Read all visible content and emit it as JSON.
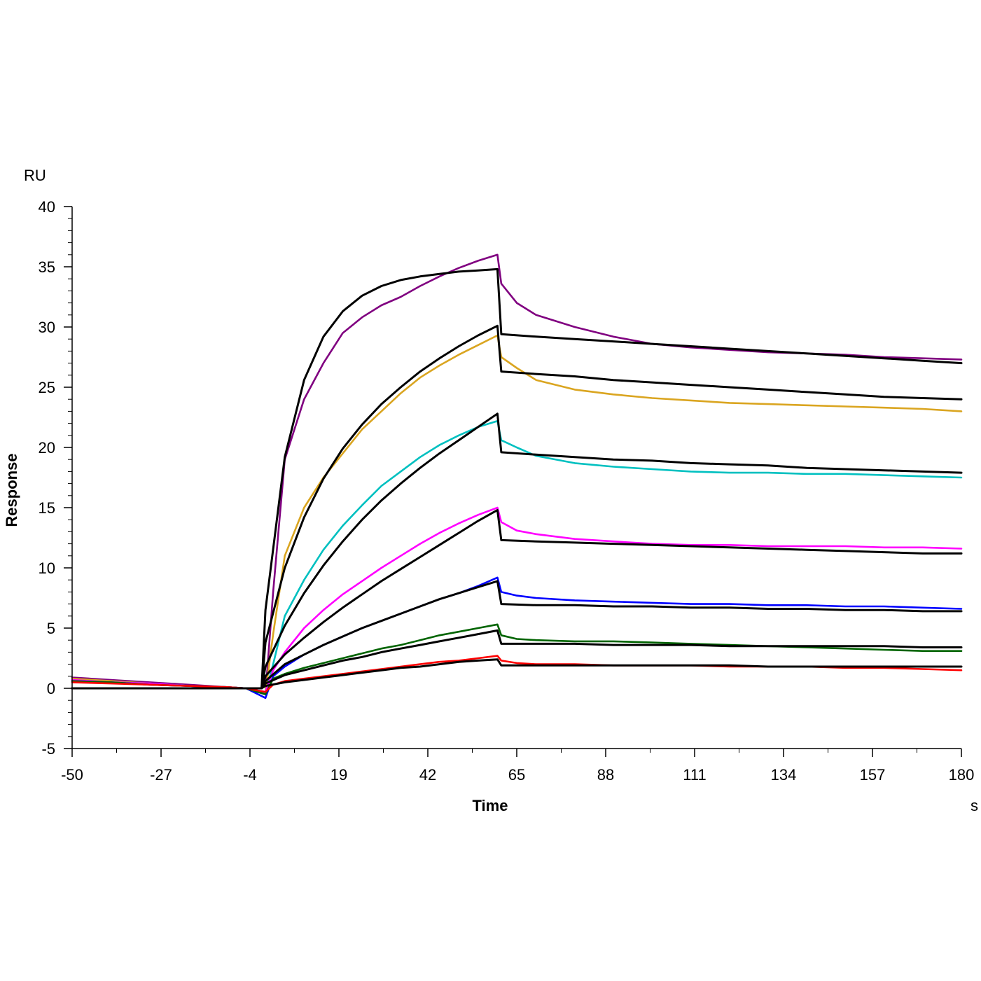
{
  "chart_data": {
    "type": "line",
    "xlabel": "Time",
    "ylabel": "Response",
    "x_unit": "s",
    "y_unit": "RU",
    "xlim": [
      -50,
      180
    ],
    "ylim": [
      -5,
      40
    ],
    "x_ticks": [
      -50,
      -27,
      -4,
      19,
      42,
      65,
      88,
      111,
      134,
      157,
      180
    ],
    "y_ticks": [
      -5,
      0,
      5,
      10,
      15,
      20,
      25,
      30,
      35,
      40
    ],
    "x_tick_labels": [
      "-50",
      "-27",
      "-4",
      "19",
      "42",
      "65",
      "88",
      "111",
      "134",
      "157",
      "180"
    ],
    "y_tick_labels": [
      "-5",
      "0",
      "5",
      "10",
      "15",
      "20",
      "25",
      "30",
      "35",
      "40"
    ],
    "grid": false,
    "legend": "none",
    "colors": {
      "axis": "#000000",
      "fit": "#000000"
    },
    "series": [
      {
        "color": "#800080",
        "x": [
          -50,
          -40,
          -30,
          -20,
          -10,
          -5,
          0,
          2,
          5,
          10,
          15,
          20,
          25,
          30,
          35,
          40,
          45,
          50,
          55,
          60,
          61,
          65,
          70,
          80,
          90,
          100,
          110,
          120,
          130,
          140,
          150,
          160,
          170,
          180
        ],
        "y": [
          0.9,
          0.7,
          0.5,
          0.3,
          0.1,
          0.0,
          -0.5,
          8.0,
          19.0,
          24.0,
          27.0,
          29.5,
          30.8,
          31.8,
          32.5,
          33.4,
          34.2,
          34.9,
          35.5,
          36.0,
          33.6,
          32.0,
          31.0,
          30.0,
          29.2,
          28.6,
          28.3,
          28.1,
          27.9,
          27.8,
          27.7,
          27.5,
          27.4,
          27.3
        ]
      },
      {
        "color": "#DAA520",
        "x": [
          -50,
          -40,
          -30,
          -20,
          -10,
          -5,
          0,
          2,
          5,
          10,
          15,
          20,
          25,
          30,
          35,
          40,
          45,
          50,
          55,
          60,
          61,
          65,
          70,
          80,
          90,
          100,
          110,
          120,
          130,
          140,
          150,
          160,
          170,
          180
        ],
        "y": [
          0.8,
          0.6,
          0.4,
          0.2,
          0.1,
          0.0,
          -0.4,
          4.5,
          11.0,
          15.0,
          17.5,
          19.5,
          21.5,
          23.0,
          24.5,
          25.8,
          26.8,
          27.7,
          28.5,
          29.3,
          27.5,
          26.6,
          25.6,
          24.8,
          24.4,
          24.1,
          23.9,
          23.7,
          23.6,
          23.5,
          23.4,
          23.3,
          23.2,
          23.0
        ]
      },
      {
        "color": "#00C0C0",
        "x": [
          -50,
          -40,
          -30,
          -20,
          -10,
          -5,
          0,
          2,
          5,
          10,
          15,
          20,
          25,
          30,
          35,
          40,
          45,
          50,
          55,
          60,
          61,
          65,
          70,
          80,
          90,
          100,
          110,
          120,
          130,
          140,
          150,
          160,
          170,
          180
        ],
        "y": [
          0.6,
          0.5,
          0.4,
          0.2,
          0.1,
          0.0,
          -0.4,
          2.0,
          6.0,
          9.0,
          11.5,
          13.5,
          15.2,
          16.8,
          18.0,
          19.2,
          20.2,
          21.0,
          21.7,
          22.2,
          20.6,
          20.0,
          19.3,
          18.7,
          18.4,
          18.2,
          18.0,
          17.9,
          17.9,
          17.8,
          17.8,
          17.7,
          17.6,
          17.5
        ]
      },
      {
        "color": "#FF00FF",
        "x": [
          -50,
          -40,
          -30,
          -20,
          -10,
          -5,
          0,
          2,
          5,
          10,
          15,
          20,
          25,
          30,
          35,
          40,
          45,
          50,
          55,
          60,
          61,
          65,
          70,
          80,
          90,
          100,
          110,
          120,
          130,
          140,
          150,
          160,
          170,
          180
        ],
        "y": [
          0.7,
          0.5,
          0.4,
          0.2,
          0.1,
          0.0,
          -0.3,
          1.5,
          3.0,
          5.0,
          6.5,
          7.8,
          8.9,
          10.0,
          11.0,
          12.0,
          12.9,
          13.7,
          14.4,
          15.0,
          13.8,
          13.1,
          12.8,
          12.4,
          12.2,
          12.0,
          11.9,
          11.9,
          11.8,
          11.8,
          11.8,
          11.7,
          11.7,
          11.6
        ]
      },
      {
        "color": "#0000FF",
        "x": [
          -50,
          -40,
          -30,
          -20,
          -10,
          -5,
          0,
          2,
          5,
          10,
          15,
          20,
          25,
          30,
          35,
          40,
          45,
          50,
          55,
          60,
          61,
          65,
          70,
          80,
          90,
          100,
          110,
          120,
          130,
          140,
          150,
          160,
          170,
          180
        ],
        "y": [
          0.6,
          0.5,
          0.3,
          0.2,
          0.1,
          0.0,
          -0.8,
          1.0,
          1.8,
          2.8,
          3.6,
          4.3,
          5.0,
          5.6,
          6.2,
          6.8,
          7.4,
          7.9,
          8.5,
          9.2,
          8.0,
          7.7,
          7.5,
          7.3,
          7.2,
          7.1,
          7.0,
          7.0,
          6.9,
          6.9,
          6.8,
          6.8,
          6.7,
          6.6
        ]
      },
      {
        "color": "#006400",
        "x": [
          -50,
          -40,
          -30,
          -20,
          -10,
          -5,
          0,
          2,
          5,
          10,
          15,
          20,
          25,
          30,
          35,
          40,
          45,
          50,
          55,
          60,
          61,
          65,
          70,
          80,
          90,
          100,
          110,
          120,
          130,
          140,
          150,
          160,
          170,
          180
        ],
        "y": [
          0.6,
          0.5,
          0.3,
          0.2,
          0.1,
          0.0,
          -0.5,
          0.8,
          1.2,
          1.7,
          2.1,
          2.5,
          2.9,
          3.3,
          3.6,
          4.0,
          4.4,
          4.7,
          5.0,
          5.3,
          4.4,
          4.1,
          4.0,
          3.9,
          3.9,
          3.8,
          3.7,
          3.6,
          3.5,
          3.4,
          3.3,
          3.2,
          3.1,
          3.1
        ]
      },
      {
        "color": "#FF0000",
        "x": [
          -50,
          -40,
          -30,
          -20,
          -10,
          -5,
          0,
          2,
          5,
          10,
          15,
          20,
          25,
          30,
          35,
          40,
          45,
          50,
          55,
          60,
          61,
          65,
          70,
          80,
          90,
          100,
          110,
          120,
          130,
          140,
          150,
          160,
          170,
          180
        ],
        "y": [
          0.5,
          0.4,
          0.3,
          0.2,
          0.1,
          0.0,
          -0.3,
          0.3,
          0.6,
          0.8,
          1.0,
          1.2,
          1.4,
          1.6,
          1.8,
          2.0,
          2.2,
          2.3,
          2.5,
          2.7,
          2.3,
          2.1,
          2.0,
          2.0,
          1.9,
          1.9,
          1.9,
          1.8,
          1.8,
          1.8,
          1.7,
          1.7,
          1.6,
          1.5
        ]
      },
      {
        "color": "#000000",
        "fit": true,
        "x": [
          -50,
          -1,
          0,
          5,
          10,
          15,
          20,
          25,
          30,
          35,
          40,
          45,
          50,
          55,
          60,
          61,
          70,
          80,
          90,
          100,
          110,
          120,
          130,
          140,
          150,
          160,
          170,
          180
        ],
        "y": [
          0.0,
          0.0,
          6.5,
          19.2,
          25.6,
          29.2,
          31.3,
          32.6,
          33.4,
          33.9,
          34.2,
          34.4,
          34.6,
          34.7,
          34.8,
          29.4,
          29.2,
          29.0,
          28.8,
          28.6,
          28.4,
          28.2,
          28.0,
          27.8,
          27.6,
          27.4,
          27.2,
          27.0
        ]
      },
      {
        "color": "#000000",
        "fit": true,
        "x": [
          -50,
          -1,
          0,
          5,
          10,
          15,
          20,
          25,
          30,
          35,
          40,
          45,
          50,
          55,
          60,
          61,
          70,
          80,
          90,
          100,
          110,
          120,
          130,
          140,
          150,
          160,
          170,
          180
        ],
        "y": [
          0.0,
          0.0,
          3.8,
          10.0,
          14.2,
          17.4,
          19.9,
          21.9,
          23.6,
          25.0,
          26.3,
          27.4,
          28.4,
          29.3,
          30.1,
          26.3,
          26.1,
          25.9,
          25.6,
          25.4,
          25.2,
          25.0,
          24.8,
          24.6,
          24.4,
          24.2,
          24.1,
          24.0
        ]
      },
      {
        "color": "#000000",
        "fit": true,
        "x": [
          -50,
          -1,
          0,
          5,
          10,
          15,
          20,
          25,
          30,
          35,
          40,
          45,
          50,
          55,
          60,
          61,
          70,
          80,
          90,
          100,
          110,
          120,
          130,
          140,
          150,
          160,
          170,
          180
        ],
        "y": [
          0.0,
          0.0,
          1.8,
          5.2,
          7.9,
          10.2,
          12.2,
          14.0,
          15.6,
          17.0,
          18.3,
          19.5,
          20.6,
          21.7,
          22.8,
          19.6,
          19.4,
          19.2,
          19.0,
          18.9,
          18.7,
          18.6,
          18.5,
          18.3,
          18.2,
          18.1,
          18.0,
          17.9
        ]
      },
      {
        "color": "#000000",
        "fit": true,
        "x": [
          -50,
          -1,
          0,
          5,
          10,
          15,
          20,
          25,
          30,
          35,
          40,
          45,
          50,
          55,
          60,
          61,
          70,
          80,
          90,
          100,
          110,
          120,
          130,
          140,
          150,
          160,
          170,
          180
        ],
        "y": [
          0.0,
          0.0,
          1.0,
          2.8,
          4.2,
          5.5,
          6.7,
          7.8,
          8.9,
          9.9,
          10.9,
          11.9,
          12.9,
          13.9,
          14.8,
          12.3,
          12.2,
          12.1,
          12.0,
          11.9,
          11.8,
          11.7,
          11.6,
          11.5,
          11.4,
          11.3,
          11.2,
          11.2
        ]
      },
      {
        "color": "#000000",
        "fit": true,
        "x": [
          -50,
          -1,
          0,
          5,
          10,
          15,
          20,
          25,
          30,
          35,
          40,
          45,
          50,
          55,
          60,
          61,
          70,
          80,
          90,
          100,
          110,
          120,
          130,
          140,
          150,
          160,
          170,
          180
        ],
        "y": [
          0.0,
          0.0,
          0.6,
          2.0,
          2.8,
          3.6,
          4.3,
          5.0,
          5.6,
          6.2,
          6.8,
          7.4,
          7.9,
          8.4,
          8.9,
          7.0,
          6.9,
          6.9,
          6.8,
          6.8,
          6.7,
          6.7,
          6.6,
          6.6,
          6.5,
          6.5,
          6.4,
          6.4
        ]
      },
      {
        "color": "#000000",
        "fit": true,
        "x": [
          -50,
          -1,
          0,
          5,
          10,
          15,
          20,
          25,
          30,
          35,
          40,
          45,
          50,
          55,
          60,
          61,
          70,
          80,
          90,
          100,
          110,
          120,
          130,
          140,
          150,
          160,
          170,
          180
        ],
        "y": [
          0.0,
          0.0,
          0.4,
          1.1,
          1.5,
          1.9,
          2.3,
          2.6,
          3.0,
          3.3,
          3.6,
          3.9,
          4.2,
          4.5,
          4.8,
          3.7,
          3.7,
          3.7,
          3.6,
          3.6,
          3.6,
          3.5,
          3.5,
          3.5,
          3.5,
          3.5,
          3.4,
          3.4
        ]
      },
      {
        "color": "#000000",
        "fit": true,
        "x": [
          -50,
          -1,
          0,
          5,
          10,
          15,
          20,
          25,
          30,
          35,
          40,
          45,
          50,
          55,
          60,
          61,
          70,
          80,
          90,
          100,
          110,
          120,
          130,
          140,
          150,
          160,
          170,
          180
        ],
        "y": [
          0.0,
          0.0,
          0.2,
          0.5,
          0.7,
          0.9,
          1.1,
          1.3,
          1.5,
          1.7,
          1.8,
          2.0,
          2.2,
          2.3,
          2.4,
          1.9,
          1.9,
          1.9,
          1.9,
          1.9,
          1.9,
          1.9,
          1.8,
          1.8,
          1.8,
          1.8,
          1.8,
          1.8
        ]
      }
    ]
  }
}
